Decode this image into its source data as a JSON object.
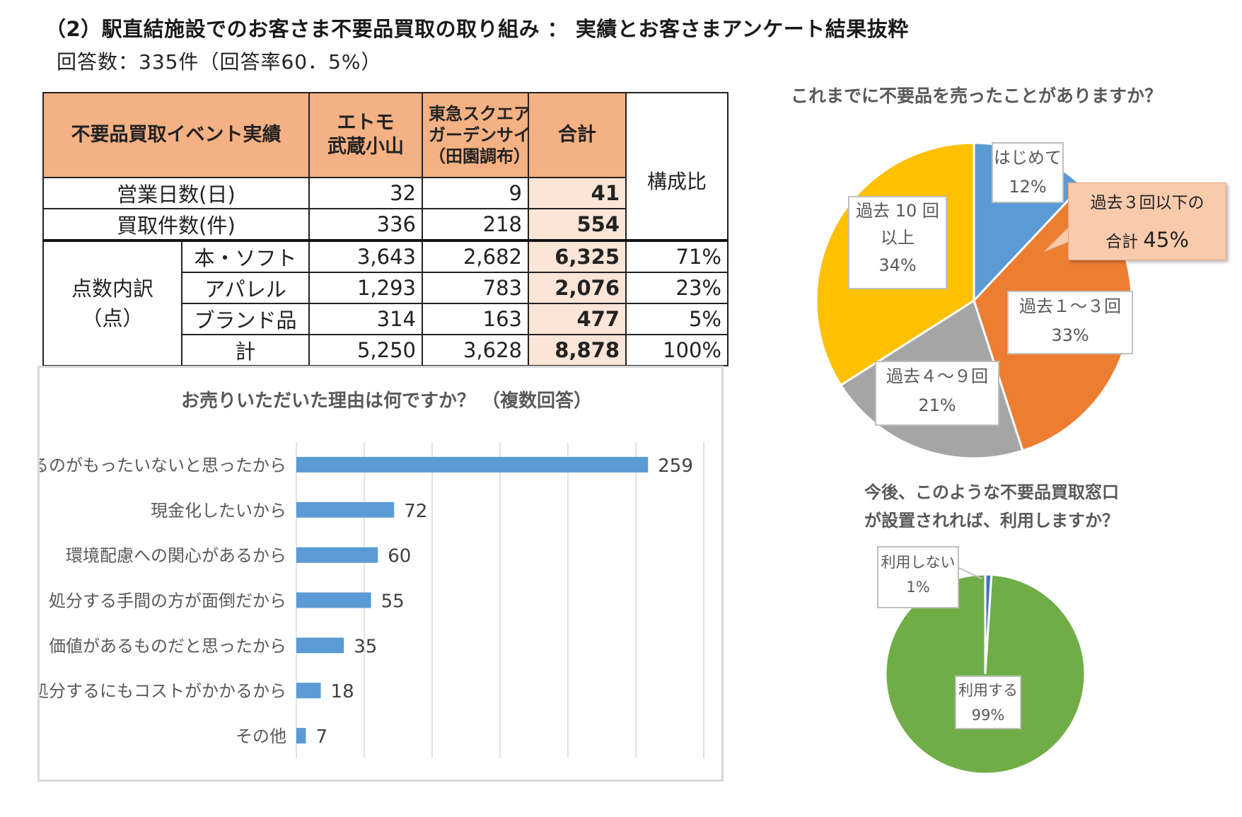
{
  "page": {
    "title": "（2）駅直結施設でのお客さま不要品買取の取り組み ： 実績とお客さまアンケート結果抜粋",
    "subtitle": "回答数：335件（回答率60．5%）"
  },
  "table": {
    "header": {
      "event": "不要品買取イベント実績",
      "col1_line1": "エトモ",
      "col1_line2": "武蔵小山",
      "col2_line1": "東急スクエア",
      "col2_line2": "ガーデンサイト",
      "col2_line3": "（田園調布）",
      "total": "合計",
      "ratio": "構成比"
    },
    "days": {
      "label": "営業日数(日)",
      "c1": "32",
      "c2": "9",
      "total": "41"
    },
    "count": {
      "label": "買取件数(件)",
      "c1": "336",
      "c2": "218",
      "total": "554"
    },
    "breakdown_line1": "点数内訳",
    "breakdown_line2": "（点）",
    "rows": [
      {
        "label": "本・ソフト",
        "c1": "3,643",
        "c2": "2,682",
        "total": "6,325",
        "ratio": "71%"
      },
      {
        "label": "アパレル",
        "c1": "1,293",
        "c2": "783",
        "total": "2,076",
        "ratio": "23%"
      },
      {
        "label": "ブランド品",
        "c1": "314",
        "c2": "163",
        "total": "477",
        "ratio": "5%"
      },
      {
        "label": "計",
        "c1": "5,250",
        "c2": "3,628",
        "total": "8,878",
        "ratio": "100%"
      }
    ]
  },
  "chart_data": [
    {
      "type": "bar",
      "orientation": "horizontal",
      "title": "お売りいただいた理由は何ですか？ （複数回答）",
      "categories": [
        "捨てるのがもったいないと思ったから",
        "現金化したいから",
        "環境配慮への関心があるから",
        "処分する手間の方が面倒だから",
        "価値があるものだと思ったから",
        "処分するにもコストがかかるから",
        "その他"
      ],
      "values": [
        259,
        72,
        60,
        55,
        35,
        18,
        7
      ],
      "xlim": [
        0,
        300
      ],
      "grid": true,
      "color": "#5b9bd5"
    },
    {
      "type": "pie",
      "title": "これまでに不要品を売ったことがありますか？",
      "slices": [
        {
          "label_line1": "はじめて",
          "label_line2": "",
          "value": 12,
          "display": "12%",
          "color": "#5b9bd5"
        },
        {
          "label_line1": "過去１～３回",
          "label_line2": "",
          "value": 33,
          "display": "33%",
          "color": "#ed7d31"
        },
        {
          "label_line1": "過去４～９回",
          "label_line2": "",
          "value": 21,
          "display": "21%",
          "color": "#a5a5a5"
        },
        {
          "label_line1": "過去 10 回",
          "label_line2": "以上",
          "value": 34,
          "display": "34%",
          "color": "#ffc000"
        }
      ],
      "callout_line1": "過去３回以下の",
      "callout_line2_prefix": "合計",
      "callout_value": "45%"
    },
    {
      "type": "pie",
      "title_line1": "今後、このような不要品買取窓口",
      "title_line2": "が設置されれば、利用しますか？",
      "slices": [
        {
          "label": "利用しない",
          "value": 1,
          "display": "1%",
          "color": "#4472c4"
        },
        {
          "label": "利用する",
          "value": 99,
          "display": "99%",
          "color": "#70ad47"
        }
      ]
    }
  ]
}
